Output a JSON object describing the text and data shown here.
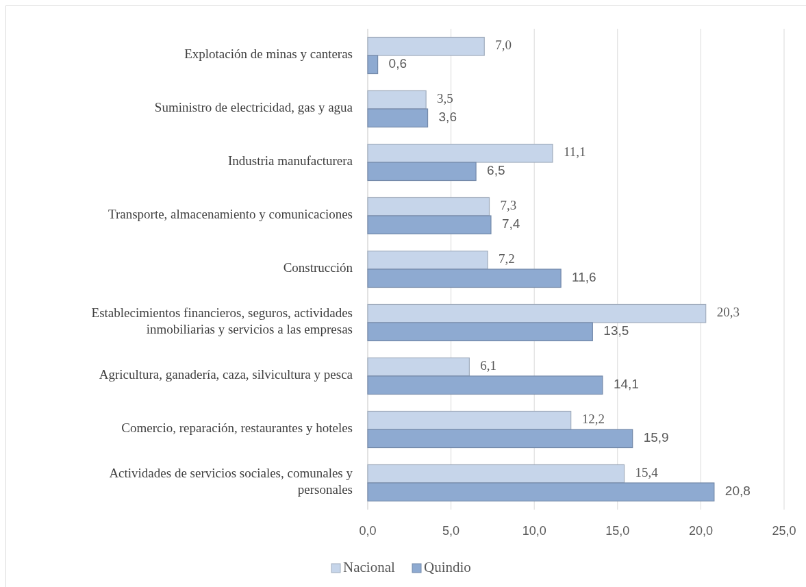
{
  "chart_data": {
    "type": "bar",
    "orientation": "horizontal",
    "categories": [
      "Explotación de minas y canteras",
      "Suministro de electricidad, gas y agua",
      "Industria manufacturera",
      "Transporte, almacenamiento y comunicaciones",
      "Construcción",
      "Establecimientos financieros, seguros, actividades inmobiliarias y servicios a las empresas",
      "Agricultura, ganadería, caza, silvicultura y pesca",
      "Comercio, reparación, restaurantes y hoteles",
      "Actividades de servicios sociales, comunales y personales"
    ],
    "series": [
      {
        "name": "Nacional",
        "color": "#c6d5ea",
        "values": [
          7.0,
          3.5,
          11.1,
          7.3,
          7.2,
          20.3,
          6.1,
          12.2,
          15.4
        ],
        "value_labels": [
          "7,0",
          "3,5",
          "11,1",
          "7,3",
          "7,2",
          "20,3",
          "6,1",
          "12,2",
          "15,4"
        ]
      },
      {
        "name": "Quindio",
        "color": "#8eaad1",
        "values": [
          0.6,
          3.6,
          6.5,
          7.4,
          11.6,
          13.5,
          14.1,
          15.9,
          20.8
        ],
        "value_labels": [
          "0,6",
          "3,6",
          "6,5",
          "7,4",
          "11,6",
          "13,5",
          "14,1",
          "15,9",
          "20,8"
        ]
      }
    ],
    "xlim": [
      0,
      25
    ],
    "xticks": [
      {
        "value": 0,
        "label": "0,0"
      },
      {
        "value": 5,
        "label": "5,0"
      },
      {
        "value": 10,
        "label": "10,0"
      },
      {
        "value": 15,
        "label": "15,0"
      },
      {
        "value": 20,
        "label": "20,0"
      },
      {
        "value": 25,
        "label": "25,0"
      }
    ],
    "grid": "x",
    "legend": "bottom"
  }
}
